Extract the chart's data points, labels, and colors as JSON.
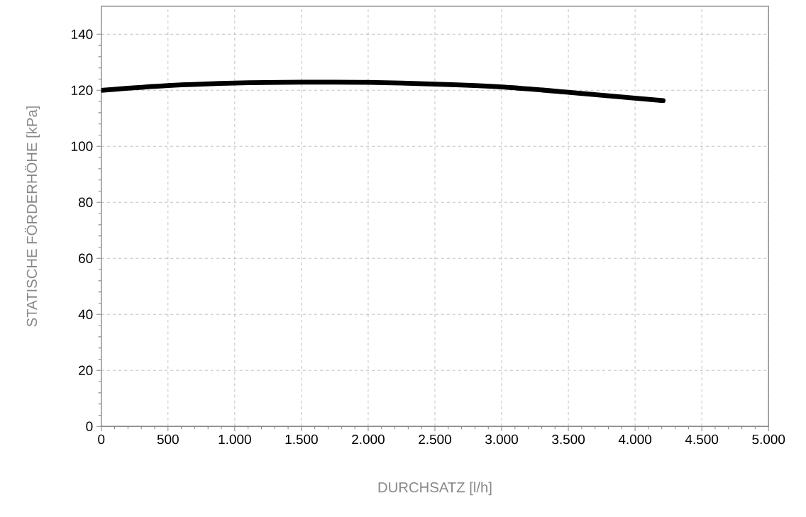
{
  "chart_data": {
    "type": "line",
    "xlabel": "DURCHSATZ [l/h]",
    "ylabel": "STATISCHE FÖRDERHÖHE [kPa]",
    "x": [
      0,
      500,
      1000,
      1500,
      2000,
      2500,
      3000,
      3500,
      4210
    ],
    "series": [
      {
        "color": "#000000",
        "values": [
          120,
          121.7,
          122.6,
          122.9,
          122.8,
          122.2,
          121.2,
          119.3,
          116.3
        ]
      }
    ],
    "xlim": [
      0,
      5000
    ],
    "ylim": [
      0,
      150
    ],
    "xticks": [
      0,
      {
        "value": 500,
        "label": "500"
      },
      {
        "value": 1000,
        "label": "1.000"
      },
      {
        "value": 1500,
        "label": "1.500"
      },
      {
        "value": 2000,
        "label": "2.000"
      },
      {
        "value": 2500,
        "label": "2.500"
      },
      {
        "value": 3000,
        "label": "3.000"
      },
      {
        "value": 3500,
        "label": "3.500"
      },
      {
        "value": 4000,
        "label": "4.000"
      },
      {
        "value": 4500,
        "label": "4.500"
      },
      {
        "value": 5000,
        "label": "5.000"
      }
    ],
    "yticks": [
      0,
      20,
      40,
      60,
      80,
      100,
      120,
      140
    ],
    "grid": true,
    "marker": "none",
    "line_style": "solid"
  }
}
